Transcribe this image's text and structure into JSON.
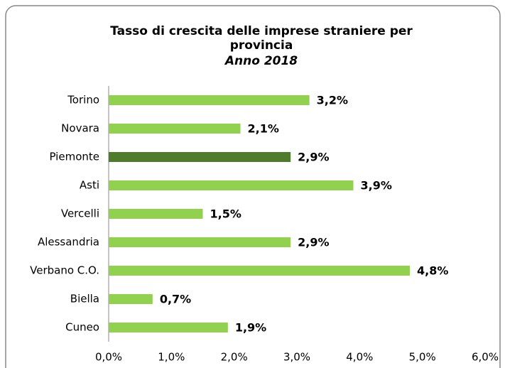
{
  "chart_data": {
    "type": "hbar",
    "title": "Tasso di crescita delle imprese straniere per provincia",
    "subtitle": "Anno 2018",
    "categories": [
      "Torino",
      "Novara",
      "Piemonte",
      "Asti",
      "Vercelli",
      "Alessandria",
      "Verbano C.O.",
      "Biella",
      "Cuneo"
    ],
    "values": [
      3.2,
      2.1,
      2.9,
      3.9,
      1.5,
      2.9,
      4.8,
      0.7,
      1.9
    ],
    "value_labels": [
      "3,2%",
      "2,1%",
      "2,9%",
      "3,9%",
      "1,5%",
      "2,9%",
      "4,8%",
      "0,7%",
      "1,9%"
    ],
    "colors": [
      "#92d050",
      "#92d050",
      "#4f7b2d",
      "#92d050",
      "#92d050",
      "#92d050",
      "#92d050",
      "#92d050",
      "#92d050"
    ],
    "xlim": [
      0,
      6
    ],
    "xticks": [
      {
        "value": 0,
        "label": "0,0%"
      },
      {
        "value": 1,
        "label": "1,0%"
      },
      {
        "value": 2,
        "label": "2,0%"
      },
      {
        "value": 3,
        "label": "3,0%"
      },
      {
        "value": 4,
        "label": "4,0%"
      },
      {
        "value": 5,
        "label": "5,0%"
      },
      {
        "value": 6,
        "label": "6,0%"
      }
    ],
    "grid": false
  }
}
